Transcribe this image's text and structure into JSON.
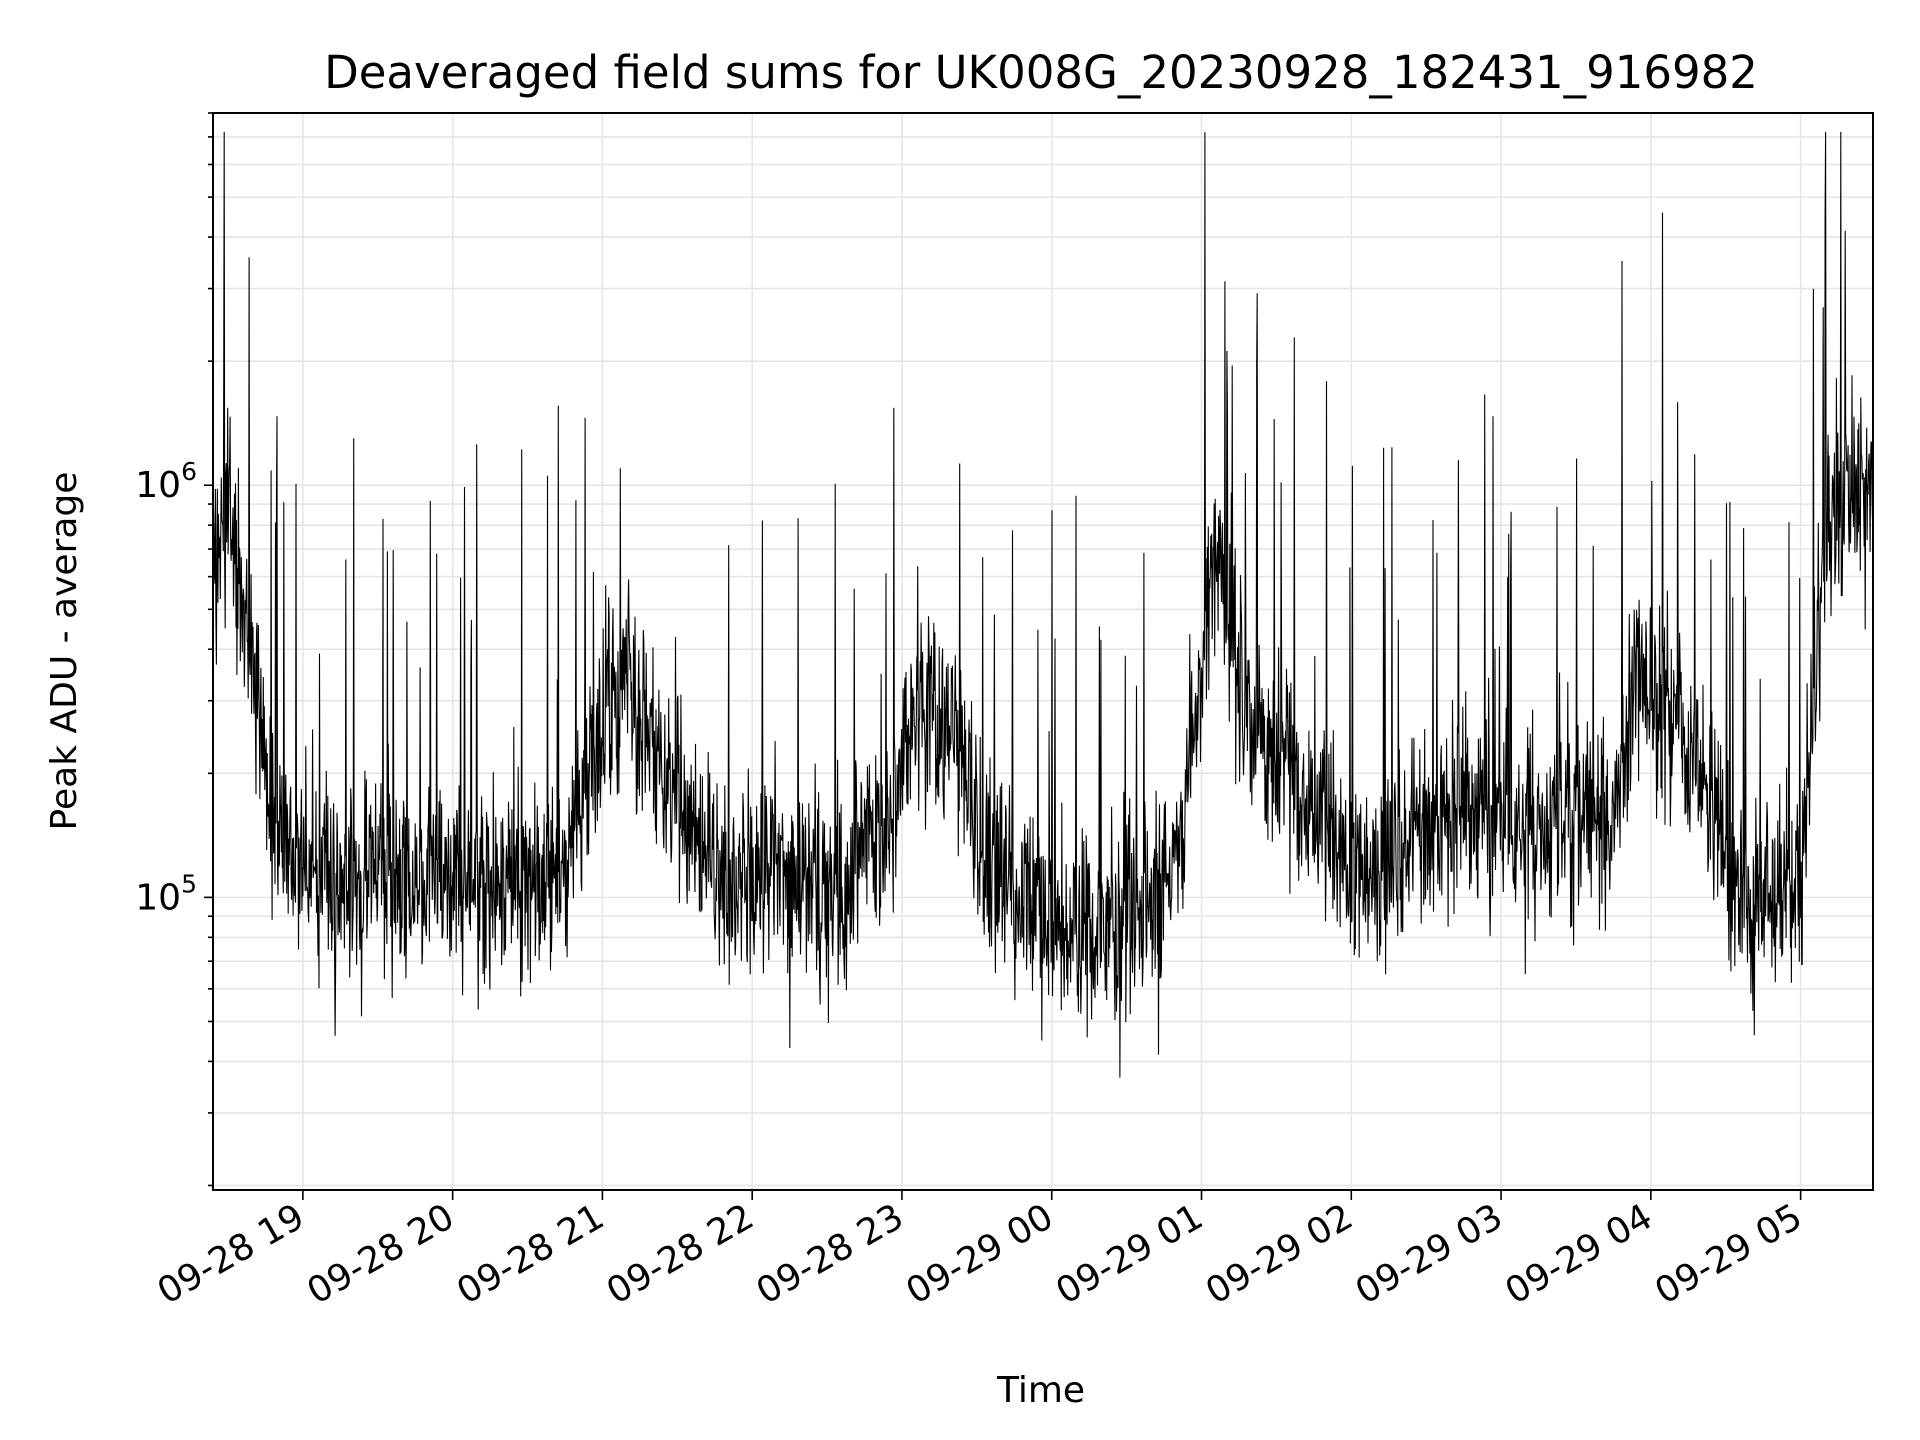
{
  "chart_data": {
    "type": "line",
    "title": "Deaveraged field sums for UK008G_20230928_182431_916982",
    "xlabel": "Time",
    "ylabel": "Peak ADU - average",
    "yscale": "log",
    "ylim": [
      19500,
      8000000
    ],
    "xlim": [
      "2023-09-28 18:24",
      "2023-09-29 05:29"
    ],
    "x_ticks": [
      "09-28 19",
      "09-28 20",
      "09-28 21",
      "09-28 22",
      "09-28 23",
      "09-29 00",
      "09-29 01",
      "09-29 02",
      "09-29 03",
      "09-29 04",
      "09-29 05"
    ],
    "y_ticks": [
      {
        "value": 100000,
        "base": "10",
        "exp": "5"
      },
      {
        "value": 1000000,
        "base": "10",
        "exp": "6"
      }
    ],
    "grid": true,
    "line_color": "#000000",
    "grid_color": "#e6e6e6",
    "series": [
      {
        "name": "",
        "x": [
          "2023-09-28 18:24",
          "2023-09-28 18:30",
          "2023-09-28 18:36",
          "2023-09-28 18:42",
          "2023-09-28 18:48",
          "2023-09-28 18:54",
          "2023-09-28 19:00",
          "2023-09-28 19:10",
          "2023-09-28 19:20",
          "2023-09-28 19:30",
          "2023-09-28 19:40",
          "2023-09-28 19:50",
          "2023-09-28 20:00",
          "2023-09-28 20:15",
          "2023-09-28 20:30",
          "2023-09-28 20:45",
          "2023-09-28 20:55",
          "2023-09-28 21:05",
          "2023-09-28 21:20",
          "2023-09-28 21:35",
          "2023-09-28 21:50",
          "2023-09-28 22:00",
          "2023-09-28 22:15",
          "2023-09-28 22:30",
          "2023-09-28 22:45",
          "2023-09-28 22:55",
          "2023-09-28 23:05",
          "2023-09-28 23:20",
          "2023-09-28 23:35",
          "2023-09-28 23:50",
          "2023-09-29 00:00",
          "2023-09-29 00:15",
          "2023-09-29 00:30",
          "2023-09-29 00:45",
          "2023-09-29 00:55",
          "2023-09-29 01:05",
          "2023-09-29 01:20",
          "2023-09-29 01:35",
          "2023-09-29 01:50",
          "2023-09-29 02:00",
          "2023-09-29 02:15",
          "2023-09-29 02:30",
          "2023-09-29 02:45",
          "2023-09-29 03:00",
          "2023-09-29 03:15",
          "2023-09-29 03:30",
          "2023-09-29 03:45",
          "2023-09-29 03:55",
          "2023-09-29 04:05",
          "2023-09-29 04:20",
          "2023-09-29 04:35",
          "2023-09-29 04:50",
          "2023-09-29 05:00",
          "2023-09-29 05:10",
          "2023-09-29 05:20",
          "2023-09-29 05:29"
        ],
        "y": [
          600000,
          900000,
          500000,
          300000,
          150000,
          130000,
          120000,
          110000,
          100000,
          120000,
          110000,
          115000,
          100000,
          110000,
          100000,
          120000,
          200000,
          350000,
          250000,
          140000,
          110000,
          120000,
          110000,
          100000,
          120000,
          160000,
          280000,
          250000,
          120000,
          100000,
          80000,
          85000,
          90000,
          95000,
          200000,
          700000,
          250000,
          200000,
          150000,
          110000,
          130000,
          150000,
          170000,
          160000,
          140000,
          170000,
          160000,
          350000,
          300000,
          200000,
          100000,
          100000,
          100000,
          700000,
          1000000,
          900000
        ]
      }
    ]
  }
}
